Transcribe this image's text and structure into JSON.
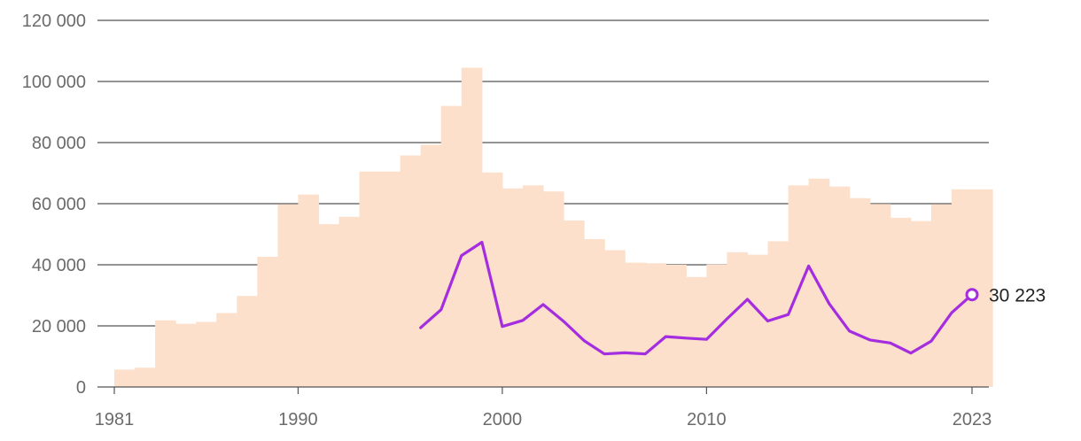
{
  "chart_data": {
    "type": "bar",
    "colors": {
      "bars": "#fce0cb",
      "line": "#a42de0",
      "grid": "#555555",
      "axis_text": "#6b6b6b",
      "marker_fill": "#ffffff"
    },
    "ylim": [
      0,
      120000
    ],
    "yticks": [
      {
        "value": 0,
        "label": "0"
      },
      {
        "value": 20000,
        "label": "20 000"
      },
      {
        "value": 40000,
        "label": "40 000"
      },
      {
        "value": 60000,
        "label": "60 000"
      },
      {
        "value": 80000,
        "label": "80 000"
      },
      {
        "value": 100000,
        "label": "100 000"
      },
      {
        "value": 120000,
        "label": "120 000"
      }
    ],
    "xlim": [
      1981,
      2023
    ],
    "xticks": [
      {
        "value": 1981,
        "label": "1981"
      },
      {
        "value": 1990,
        "label": "1990"
      },
      {
        "value": 2000,
        "label": "2000"
      },
      {
        "value": 2010,
        "label": "2010"
      },
      {
        "value": 2023,
        "label": "2023"
      }
    ],
    "grid": true,
    "series": [
      {
        "type": "bar",
        "x": [
          1981,
          1982,
          1983,
          1984,
          1985,
          1986,
          1987,
          1988,
          1989,
          1990,
          1991,
          1992,
          1993,
          1994,
          1995,
          1996,
          1997,
          1998,
          1999,
          2000,
          2001,
          2002,
          2003,
          2004,
          2005,
          2006,
          2007,
          2008,
          2009,
          2010,
          2011,
          2012,
          2013,
          2014,
          2015,
          2016,
          2017,
          2018,
          2019,
          2020,
          2021,
          2022,
          2023
        ],
        "values": [
          5700,
          6300,
          21800,
          20700,
          21300,
          24200,
          29800,
          42600,
          59800,
          63000,
          53300,
          55700,
          70500,
          70500,
          75800,
          79300,
          92000,
          104500,
          70200,
          65000,
          66000,
          64000,
          54500,
          48400,
          44800,
          40700,
          40500,
          40000,
          36000,
          40100,
          44100,
          43300,
          47700,
          66000,
          68200,
          65600,
          61800,
          59900,
          55400,
          54300,
          59800,
          64700,
          64700
        ]
      },
      {
        "type": "line",
        "x": [
          1996,
          1997,
          1998,
          1999,
          2000,
          2001,
          2002,
          2003,
          2004,
          2005,
          2006,
          2007,
          2008,
          2009,
          2010,
          2011,
          2012,
          2013,
          2014,
          2015,
          2016,
          2017,
          2018,
          2019,
          2020,
          2021,
          2022,
          2023
        ],
        "values": [
          19400,
          25300,
          43000,
          47400,
          19800,
          21800,
          27000,
          21500,
          15200,
          10800,
          11200,
          10800,
          16500,
          16000,
          15600,
          22300,
          28700,
          21600,
          23700,
          39600,
          27300,
          18300,
          15400,
          14400,
          11100,
          15000,
          24300,
          30223
        ]
      }
    ],
    "end_label": "30 223"
  }
}
